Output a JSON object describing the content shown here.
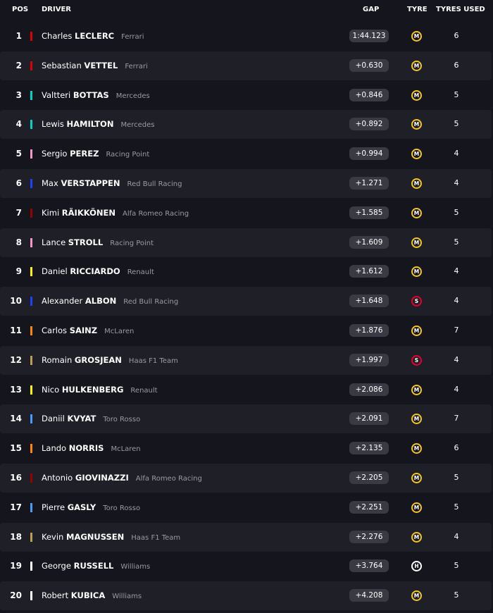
{
  "header": {
    "pos": "POS",
    "driver": "DRIVER",
    "gap": "GAP",
    "tyre": "TYRE",
    "tyres_used": "TYRES USED"
  },
  "rows": [
    {
      "pos": 1,
      "first": "Charles",
      "last": "LECLERC",
      "team": "Ferrari",
      "team_color": "#dc0000",
      "gap": "1:44.123",
      "tyre": "M",
      "tyre_color": "#f5c518",
      "tyres_used": 6
    },
    {
      "pos": 2,
      "first": "Sebastian",
      "last": "VETTEL",
      "team": "Ferrari",
      "team_color": "#dc0000",
      "gap": "+0.630",
      "tyre": "M",
      "tyre_color": "#f5c518",
      "tyres_used": 6
    },
    {
      "pos": 3,
      "first": "Valtteri",
      "last": "BOTTAS",
      "team": "Mercedes",
      "team_color": "#00d2be",
      "gap": "+0.846",
      "tyre": "M",
      "tyre_color": "#f5c518",
      "tyres_used": 5
    },
    {
      "pos": 4,
      "first": "Lewis",
      "last": "HAMILTON",
      "team": "Mercedes",
      "team_color": "#00d2be",
      "gap": "+0.892",
      "tyre": "M",
      "tyre_color": "#f5c518",
      "tyres_used": 5
    },
    {
      "pos": 5,
      "first": "Sergio",
      "last": "PEREZ",
      "team": "Racing Point",
      "team_color": "#f596c8",
      "gap": "+0.994",
      "tyre": "M",
      "tyre_color": "#f5c518",
      "tyres_used": 4
    },
    {
      "pos": 6,
      "first": "Max",
      "last": "VERSTAPPEN",
      "team": "Red Bull Racing",
      "team_color": "#1e41ff",
      "gap": "+1.271",
      "tyre": "M",
      "tyre_color": "#f5c518",
      "tyres_used": 4
    },
    {
      "pos": 7,
      "first": "Kimi",
      "last": "RÄIKKÖNEN",
      "team": "Alfa Romeo Racing",
      "team_color": "#9b0000",
      "gap": "+1.585",
      "tyre": "M",
      "tyre_color": "#f5c518",
      "tyres_used": 5
    },
    {
      "pos": 8,
      "first": "Lance",
      "last": "STROLL",
      "team": "Racing Point",
      "team_color": "#f596c8",
      "gap": "+1.609",
      "tyre": "M",
      "tyre_color": "#f5c518",
      "tyres_used": 5
    },
    {
      "pos": 9,
      "first": "Daniel",
      "last": "RICCIARDO",
      "team": "Renault",
      "team_color": "#fff500",
      "gap": "+1.612",
      "tyre": "M",
      "tyre_color": "#f5c518",
      "tyres_used": 4
    },
    {
      "pos": 10,
      "first": "Alexander",
      "last": "ALBON",
      "team": "Red Bull Racing",
      "team_color": "#1e41ff",
      "gap": "+1.648",
      "tyre": "S",
      "tyre_color": "#e8002d",
      "tyres_used": 4
    },
    {
      "pos": 11,
      "first": "Carlos",
      "last": "SAINZ",
      "team": "McLaren",
      "team_color": "#ff8700",
      "gap": "+1.876",
      "tyre": "M",
      "tyre_color": "#f5c518",
      "tyres_used": 7
    },
    {
      "pos": 12,
      "first": "Romain",
      "last": "GROSJEAN",
      "team": "Haas F1 Team",
      "team_color": "#bd9e57",
      "gap": "+1.997",
      "tyre": "S",
      "tyre_color": "#e8002d",
      "tyres_used": 4
    },
    {
      "pos": 13,
      "first": "Nico",
      "last": "HULKENBERG",
      "team": "Renault",
      "team_color": "#fff500",
      "gap": "+2.086",
      "tyre": "M",
      "tyre_color": "#f5c518",
      "tyres_used": 4
    },
    {
      "pos": 14,
      "first": "Daniil",
      "last": "KVYAT",
      "team": "Toro Rosso",
      "team_color": "#469bff",
      "gap": "+2.091",
      "tyre": "M",
      "tyre_color": "#f5c518",
      "tyres_used": 7
    },
    {
      "pos": 15,
      "first": "Lando",
      "last": "NORRIS",
      "team": "McLaren",
      "team_color": "#ff8700",
      "gap": "+2.135",
      "tyre": "M",
      "tyre_color": "#f5c518",
      "tyres_used": 6
    },
    {
      "pos": 16,
      "first": "Antonio",
      "last": "GIOVINAZZI",
      "team": "Alfa Romeo Racing",
      "team_color": "#9b0000",
      "gap": "+2.205",
      "tyre": "M",
      "tyre_color": "#f5c518",
      "tyres_used": 5
    },
    {
      "pos": 17,
      "first": "Pierre",
      "last": "GASLY",
      "team": "Toro Rosso",
      "team_color": "#469bff",
      "gap": "+2.251",
      "tyre": "M",
      "tyre_color": "#f5c518",
      "tyres_used": 5
    },
    {
      "pos": 18,
      "first": "Kevin",
      "last": "MAGNUSSEN",
      "team": "Haas F1 Team",
      "team_color": "#bd9e57",
      "gap": "+2.276",
      "tyre": "M",
      "tyre_color": "#f5c518",
      "tyres_used": 4
    },
    {
      "pos": 19,
      "first": "George",
      "last": "RUSSELL",
      "team": "Williams",
      "team_color": "#ffffff",
      "gap": "+3.764",
      "tyre": "H",
      "tyre_color": "#ffffff",
      "tyres_used": 5
    },
    {
      "pos": 20,
      "first": "Robert",
      "last": "KUBICA",
      "team": "Williams",
      "team_color": "#ffffff",
      "gap": "+4.208",
      "tyre": "M",
      "tyre_color": "#f5c518",
      "tyres_used": 5
    }
  ]
}
